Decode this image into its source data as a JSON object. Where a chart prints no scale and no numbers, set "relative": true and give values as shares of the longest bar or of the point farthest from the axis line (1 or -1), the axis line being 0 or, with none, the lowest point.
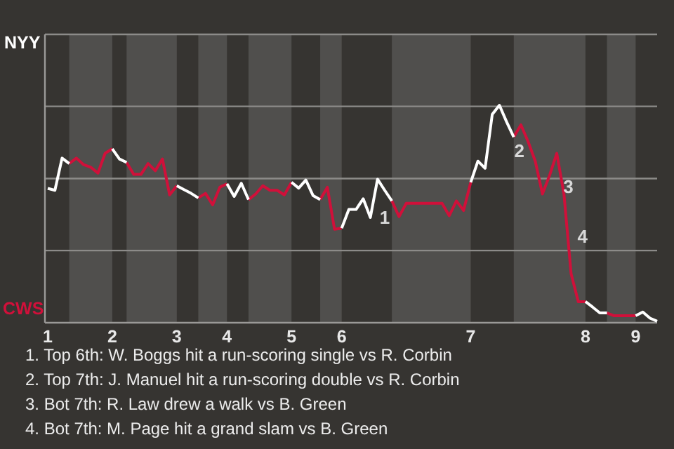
{
  "chart_data": {
    "type": "line",
    "relative": true,
    "marker": "none",
    "line_style": "solid",
    "ref_lines": [
      {
        "axis": "y",
        "value": 0.332,
        "color": "#8c8b89"
      },
      {
        "axis": "y",
        "value": 0.663,
        "color": "#8c8b89"
      },
      {
        "axis": "y",
        "value": 0.995,
        "color": "#8c8b89"
      },
      {
        "axis": "y",
        "value": 1.326,
        "color": "#8c8b89"
      }
    ],
    "categories": [
      "1",
      null,
      null,
      null,
      null,
      null,
      null,
      null,
      null,
      "2",
      null,
      null,
      null,
      null,
      null,
      null,
      null,
      null,
      "3",
      null,
      null,
      null,
      null,
      null,
      null,
      "4",
      null,
      null,
      null,
      null,
      null,
      null,
      null,
      null,
      "5",
      null,
      null,
      null,
      null,
      null,
      null,
      "6",
      null,
      null,
      null,
      null,
      null,
      null,
      null,
      null,
      null,
      null,
      null,
      null,
      null,
      null,
      null,
      null,
      null,
      "7",
      null,
      null,
      null,
      null,
      null,
      null,
      null,
      null,
      null,
      null,
      null,
      null,
      null,
      null,
      null,
      "8",
      null,
      null,
      null,
      null,
      null,
      null,
      "9",
      null,
      null,
      null
    ],
    "series": [
      {
        "color": "#ffffff",
        "values": [
          0.618,
          0.609,
          0.757,
          0.732,
          null,
          null,
          null,
          null,
          null,
          0.8,
          0.753,
          0.737,
          null,
          null,
          null,
          null,
          null,
          null,
          0.63,
          0.612,
          0.595,
          0.574,
          null,
          null,
          null,
          0.639,
          0.581,
          0.641,
          0.566,
          null,
          null,
          null,
          null,
          null,
          0.646,
          0.619,
          0.656,
          0.585,
          0.566,
          null,
          null,
          0.435,
          0.521,
          0.521,
          0.57,
          0.484,
          0.66,
          0.609,
          0.56,
          null,
          null,
          null,
          null,
          null,
          null,
          null,
          null,
          null,
          null,
          0.646,
          0.743,
          0.71,
          0.958,
          1,
          0.924,
          0.854,
          null,
          null,
          null,
          null,
          null,
          null,
          null,
          null,
          null,
          0.097,
          0.072,
          0.045,
          0.045,
          null,
          null,
          null,
          0.032,
          0.049,
          0.021,
          0.007
        ]
      },
      {
        "color": "#d0103a",
        "values": [
          null,
          null,
          null,
          0.732,
          0.757,
          0.727,
          0.715,
          0.688,
          0.779,
          0.8,
          null,
          0.737,
          0.682,
          0.682,
          0.732,
          0.699,
          0.753,
          0.588,
          0.63,
          null,
          null,
          0.574,
          0.595,
          0.542,
          0.623,
          0.639,
          null,
          null,
          0.566,
          0.592,
          0.63,
          0.609,
          0.609,
          0.588,
          0.646,
          null,
          null,
          null,
          0.566,
          0.623,
          0.43,
          0.435,
          null,
          null,
          null,
          null,
          null,
          null,
          0.56,
          0.488,
          0.549,
          0.549,
          0.549,
          0.549,
          0.549,
          0.549,
          0.492,
          0.56,
          0.516,
          0.646,
          null,
          null,
          null,
          null,
          null,
          0.854,
          0.91,
          0.833,
          0.743,
          0.592,
          0.678,
          0.779,
          0.592,
          0.225,
          0.097,
          0.097,
          null,
          null,
          0.045,
          0.032,
          0.032,
          0.032,
          0.032,
          null,
          null,
          null
        ]
      }
    ],
    "annotations": [
      "NYY",
      "CWS",
      "1",
      "2",
      "3",
      "4",
      "1. Top 6th: W. Boggs hit a run-scoring single vs R. Corbin",
      "2. Top 7th: J. Manuel hit a run-scoring double vs R. Corbin",
      "3. Bot 7th: R. Law drew a walk vs B. Green",
      "4. Bot 7th: M. Page hit a grand slam vs B. Green"
    ]
  }
}
